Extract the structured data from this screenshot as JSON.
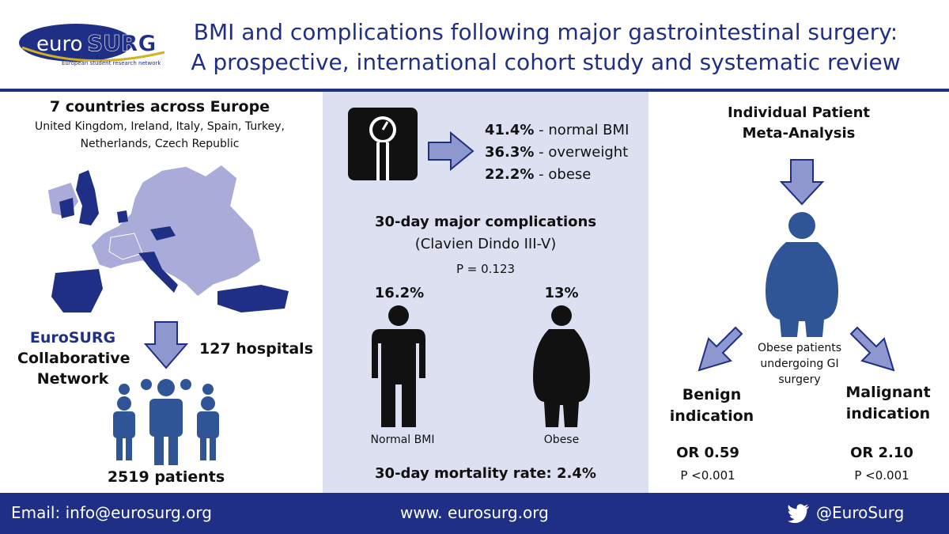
{
  "header": {
    "logo_euro": "euro",
    "logo_surg": "SURG",
    "logo_tagline": "European student research network",
    "title_line1": "BMI and complications following major gastrointestinal surgery:",
    "title_line2": "A prospective, international cohort study and systematic review"
  },
  "left": {
    "heading": "7 countries across Europe",
    "countries_line1": "United Kingdom, Ireland, Italy, Spain, Turkey,",
    "countries_line2": "Netherlands, Czech Republic",
    "network_name": "EuroSURG",
    "network_line2": "Collaborative",
    "network_line3": "Network",
    "hospitals": "127 hospitals",
    "patients": "2519 patients"
  },
  "center": {
    "bmi_stats": [
      {
        "value": "41.4%",
        "label": " - normal BMI"
      },
      {
        "value": "36.3%",
        "label": " - overweight"
      },
      {
        "value": "22.2%",
        "label": " - obese"
      }
    ],
    "complications_title": "30-day major complications",
    "complications_sub": "(Clavien Dindo III-V)",
    "p_value": "P = 0.123",
    "normal_pct": "16.2%",
    "obese_pct": "13%",
    "normal_label": "Normal BMI",
    "obese_label": "Obese",
    "mortality": "30-day mortality rate: 2.4%"
  },
  "right": {
    "title_line1": "Individual Patient",
    "title_line2": "Meta-Analysis",
    "obese_desc_line1": "Obese patients",
    "obese_desc_line2": "undergoing GI",
    "obese_desc_line3": "surgery",
    "benign_line1": "Benign",
    "benign_line2": "indication",
    "malignant_line1": "Malignant",
    "malignant_line2": "indication",
    "benign_or": "OR 0.59",
    "benign_p": "P <0.001",
    "malignant_or": "OR 2.10",
    "malignant_p": "P <0.001"
  },
  "footer": {
    "email": "Email: info@eurosurg.org",
    "website": "www. eurosurg.org",
    "twitter": "@EuroSurg"
  },
  "colors": {
    "navy": "#1f2f86",
    "arrow_fill": "#8f97cf",
    "map_light": "#a9acd8",
    "map_dark": "#1f2f86",
    "panel_bg": "#dde0f0",
    "person_blue": "#2f5597"
  }
}
